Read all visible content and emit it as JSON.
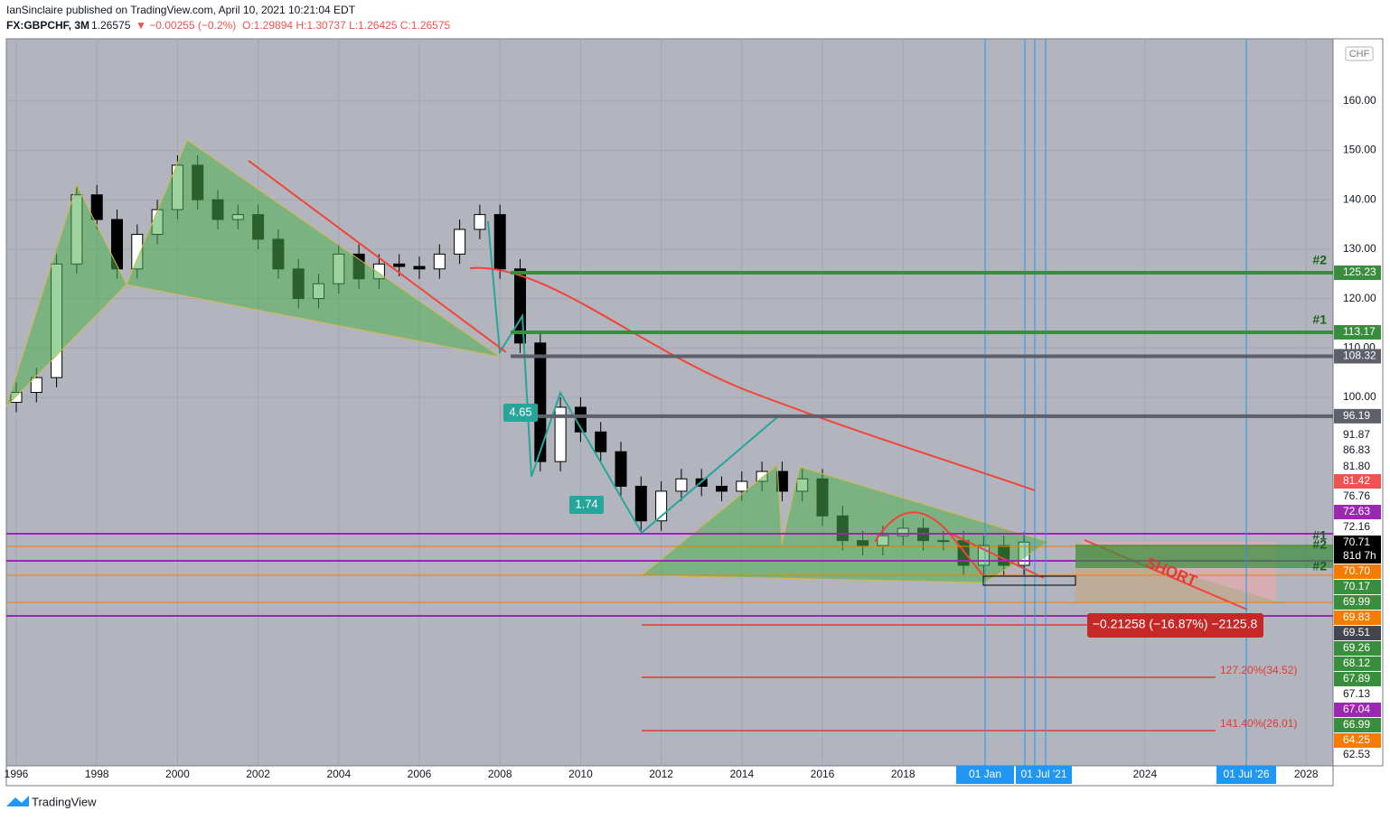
{
  "header": {
    "line1": "IanSinclaire published on TradingView.com, April 10, 2021 10:21:04 EDT",
    "symbol": "FX:GBPCHF, 3M",
    "last": "1.26575",
    "change": "▼ −0.00255 (−0.2%)",
    "ohlc": "O:1.29894 H:1.30737 L:1.26425 C:1.26575"
  },
  "candles": {
    "x": [
      1996.0,
      1996.5,
      1997.0,
      1997.5,
      1998.0,
      1998.5,
      1999.0,
      1999.5,
      2000.0,
      2000.5,
      2001.0,
      2001.5,
      2002.0,
      2002.5,
      2003.0,
      2003.5,
      2004.0,
      2004.5,
      2005.0,
      2005.5,
      2006.0,
      2006.5,
      2007.0,
      2007.5,
      2008.0,
      2008.5,
      2009.0,
      2009.5,
      2010.0,
      2010.5,
      2011.0,
      2011.5,
      2012.0,
      2012.5,
      2013.0,
      2013.5,
      2014.0,
      2014.5,
      2015.0,
      2015.5,
      2016.0,
      2016.5,
      2017.0,
      2017.5,
      2018.0,
      2018.5,
      2019.0,
      2019.5,
      2020.0,
      2020.5,
      2021.0
    ],
    "open": [
      99,
      101,
      104,
      127,
      141,
      136,
      126,
      133,
      138,
      147,
      140,
      136,
      137,
      132,
      126,
      120,
      123,
      129,
      124,
      127,
      126.5,
      126,
      129,
      134,
      137,
      126,
      111,
      87,
      98,
      93,
      89,
      82,
      75,
      81,
      83.5,
      82,
      81,
      83,
      85,
      81,
      83.5,
      76,
      71,
      70,
      72,
      73.5,
      71,
      71,
      66,
      70,
      66
    ],
    "high": [
      103,
      106,
      129,
      143,
      143,
      138,
      135,
      140,
      149,
      149,
      142,
      139,
      139,
      134,
      128,
      125,
      131,
      131,
      129,
      129,
      128.5,
      131,
      136,
      139,
      139,
      128,
      113,
      100,
      100,
      95,
      91,
      84,
      83,
      85.5,
      85.5,
      84,
      85,
      87,
      87,
      85.5,
      85.5,
      78,
      73,
      74,
      75.5,
      75.5,
      73,
      73,
      72,
      72,
      72.7
    ],
    "low": [
      97,
      99,
      102,
      125,
      134,
      124,
      124,
      131,
      136,
      138,
      134,
      134,
      130,
      124,
      118,
      118,
      121,
      122,
      122,
      124.5,
      124,
      124,
      127,
      132,
      124,
      109,
      85,
      85,
      91,
      87,
      80,
      73,
      73,
      79,
      80,
      79,
      79,
      81,
      79,
      79,
      74,
      69,
      68,
      68,
      70,
      69,
      69,
      64,
      64,
      64,
      64
    ],
    "close": [
      101,
      104,
      127,
      141,
      136,
      126,
      133,
      138,
      147,
      140,
      136,
      137,
      132,
      126,
      120,
      123,
      129,
      124,
      127,
      126.5,
      126,
      129,
      134,
      137,
      126,
      111,
      87,
      98,
      93,
      89,
      82,
      75,
      81,
      83.5,
      82,
      81,
      83,
      85,
      81,
      83.5,
      76,
      71,
      70,
      72,
      73.5,
      71,
      71,
      66,
      70,
      66,
      70.7
    ]
  },
  "yticks": [
    {
      "value": 160,
      "label": "160.00"
    },
    {
      "value": 150,
      "label": "150.00"
    },
    {
      "value": 140,
      "label": "140.00"
    },
    {
      "value": 130,
      "label": "130.00"
    },
    {
      "value": 120,
      "label": "120.00"
    },
    {
      "value": 110,
      "label": "110.00"
    },
    {
      "value": 100,
      "label": "100.00"
    }
  ],
  "currency": "CHF",
  "levels": [
    {
      "value": 125.23,
      "color": "#388e3c",
      "tag": "#2"
    },
    {
      "value": 113.17,
      "color": "#388e3c",
      "tag": "#1"
    },
    {
      "value": 108.32,
      "color": "#5d606b"
    },
    {
      "value": 96.19,
      "color": "#5d606b"
    }
  ],
  "price_tags": [
    {
      "text": "91.87",
      "bg": "#ffffff",
      "fg": "#131722"
    },
    {
      "text": "86.83",
      "bg": "#ffffff",
      "fg": "#131722"
    },
    {
      "text": "81.80",
      "bg": "#ffffff",
      "fg": "#131722"
    },
    {
      "text": "81.42",
      "bg": "#ef5350",
      "fg": "#ffffff"
    },
    {
      "text": "76.76",
      "bg": "#ffffff",
      "fg": "#131722"
    },
    {
      "text": "72.63",
      "bg": "#9c27b0",
      "fg": "#ffffff"
    },
    {
      "text": "72.16",
      "bg": "#ffffff",
      "fg": "#131722"
    },
    {
      "text": "70.71",
      "bg": "#000000",
      "fg": "#ffffff"
    },
    {
      "text": "81d 7h",
      "bg": "#000000",
      "fg": "#ffffff"
    },
    {
      "text": "70.70",
      "bg": "#f57c00",
      "fg": "#ffffff"
    },
    {
      "text": "70.17",
      "bg": "#388e3c",
      "fg": "#ffffff"
    },
    {
      "text": "69.99",
      "bg": "#388e3c",
      "fg": "#ffffff"
    },
    {
      "text": "69.83",
      "bg": "#f57c00",
      "fg": "#ffffff"
    },
    {
      "text": "69.51",
      "bg": "#434651",
      "fg": "#ffffff"
    },
    {
      "text": "69.26",
      "bg": "#388e3c",
      "fg": "#ffffff"
    },
    {
      "text": "68.12",
      "bg": "#388e3c",
      "fg": "#ffffff"
    },
    {
      "text": "67.89",
      "bg": "#388e3c",
      "fg": "#ffffff"
    },
    {
      "text": "67.13",
      "bg": "#ffffff",
      "fg": "#131722"
    },
    {
      "text": "67.04",
      "bg": "#9c27b0",
      "fg": "#ffffff"
    },
    {
      "text": "66.99",
      "bg": "#388e3c",
      "fg": "#ffffff"
    },
    {
      "text": "64.25",
      "bg": "#f57c00",
      "fg": "#ffffff"
    },
    {
      "text": "62.53",
      "bg": "#ffffff",
      "fg": "#131722"
    }
  ],
  "xticks": [
    {
      "value": 1996,
      "label": "1996"
    },
    {
      "value": 1998,
      "label": "1998"
    },
    {
      "value": 2000,
      "label": "2000"
    },
    {
      "value": 2002,
      "label": "2002"
    },
    {
      "value": 2004,
      "label": "2004"
    },
    {
      "value": 2006,
      "label": "2006"
    },
    {
      "value": 2008,
      "label": "2008"
    },
    {
      "value": 2010,
      "label": "2010"
    },
    {
      "value": 2012,
      "label": "2012"
    },
    {
      "value": 2014,
      "label": "2014"
    },
    {
      "value": 2016,
      "label": "2016"
    },
    {
      "value": 2018,
      "label": "2018"
    },
    {
      "value": 2024,
      "label": "2024"
    },
    {
      "value": 2028,
      "label": "2028"
    }
  ],
  "date_tags": [
    "01 Jan",
    "01 Jul '21",
    "01 Jul '26"
  ],
  "annotations": {
    "ratio1": "4.65",
    "ratio2": "1.74",
    "measure": "−0.21258 (−16.87%) −2125.8",
    "fib1": "127.20%(34.52)",
    "fib2": "141.40%(26.01)",
    "short": "SHORT",
    "mark1": "#1",
    "mark2": "#2",
    "mark3": "#2"
  },
  "footer": "TradingView"
}
